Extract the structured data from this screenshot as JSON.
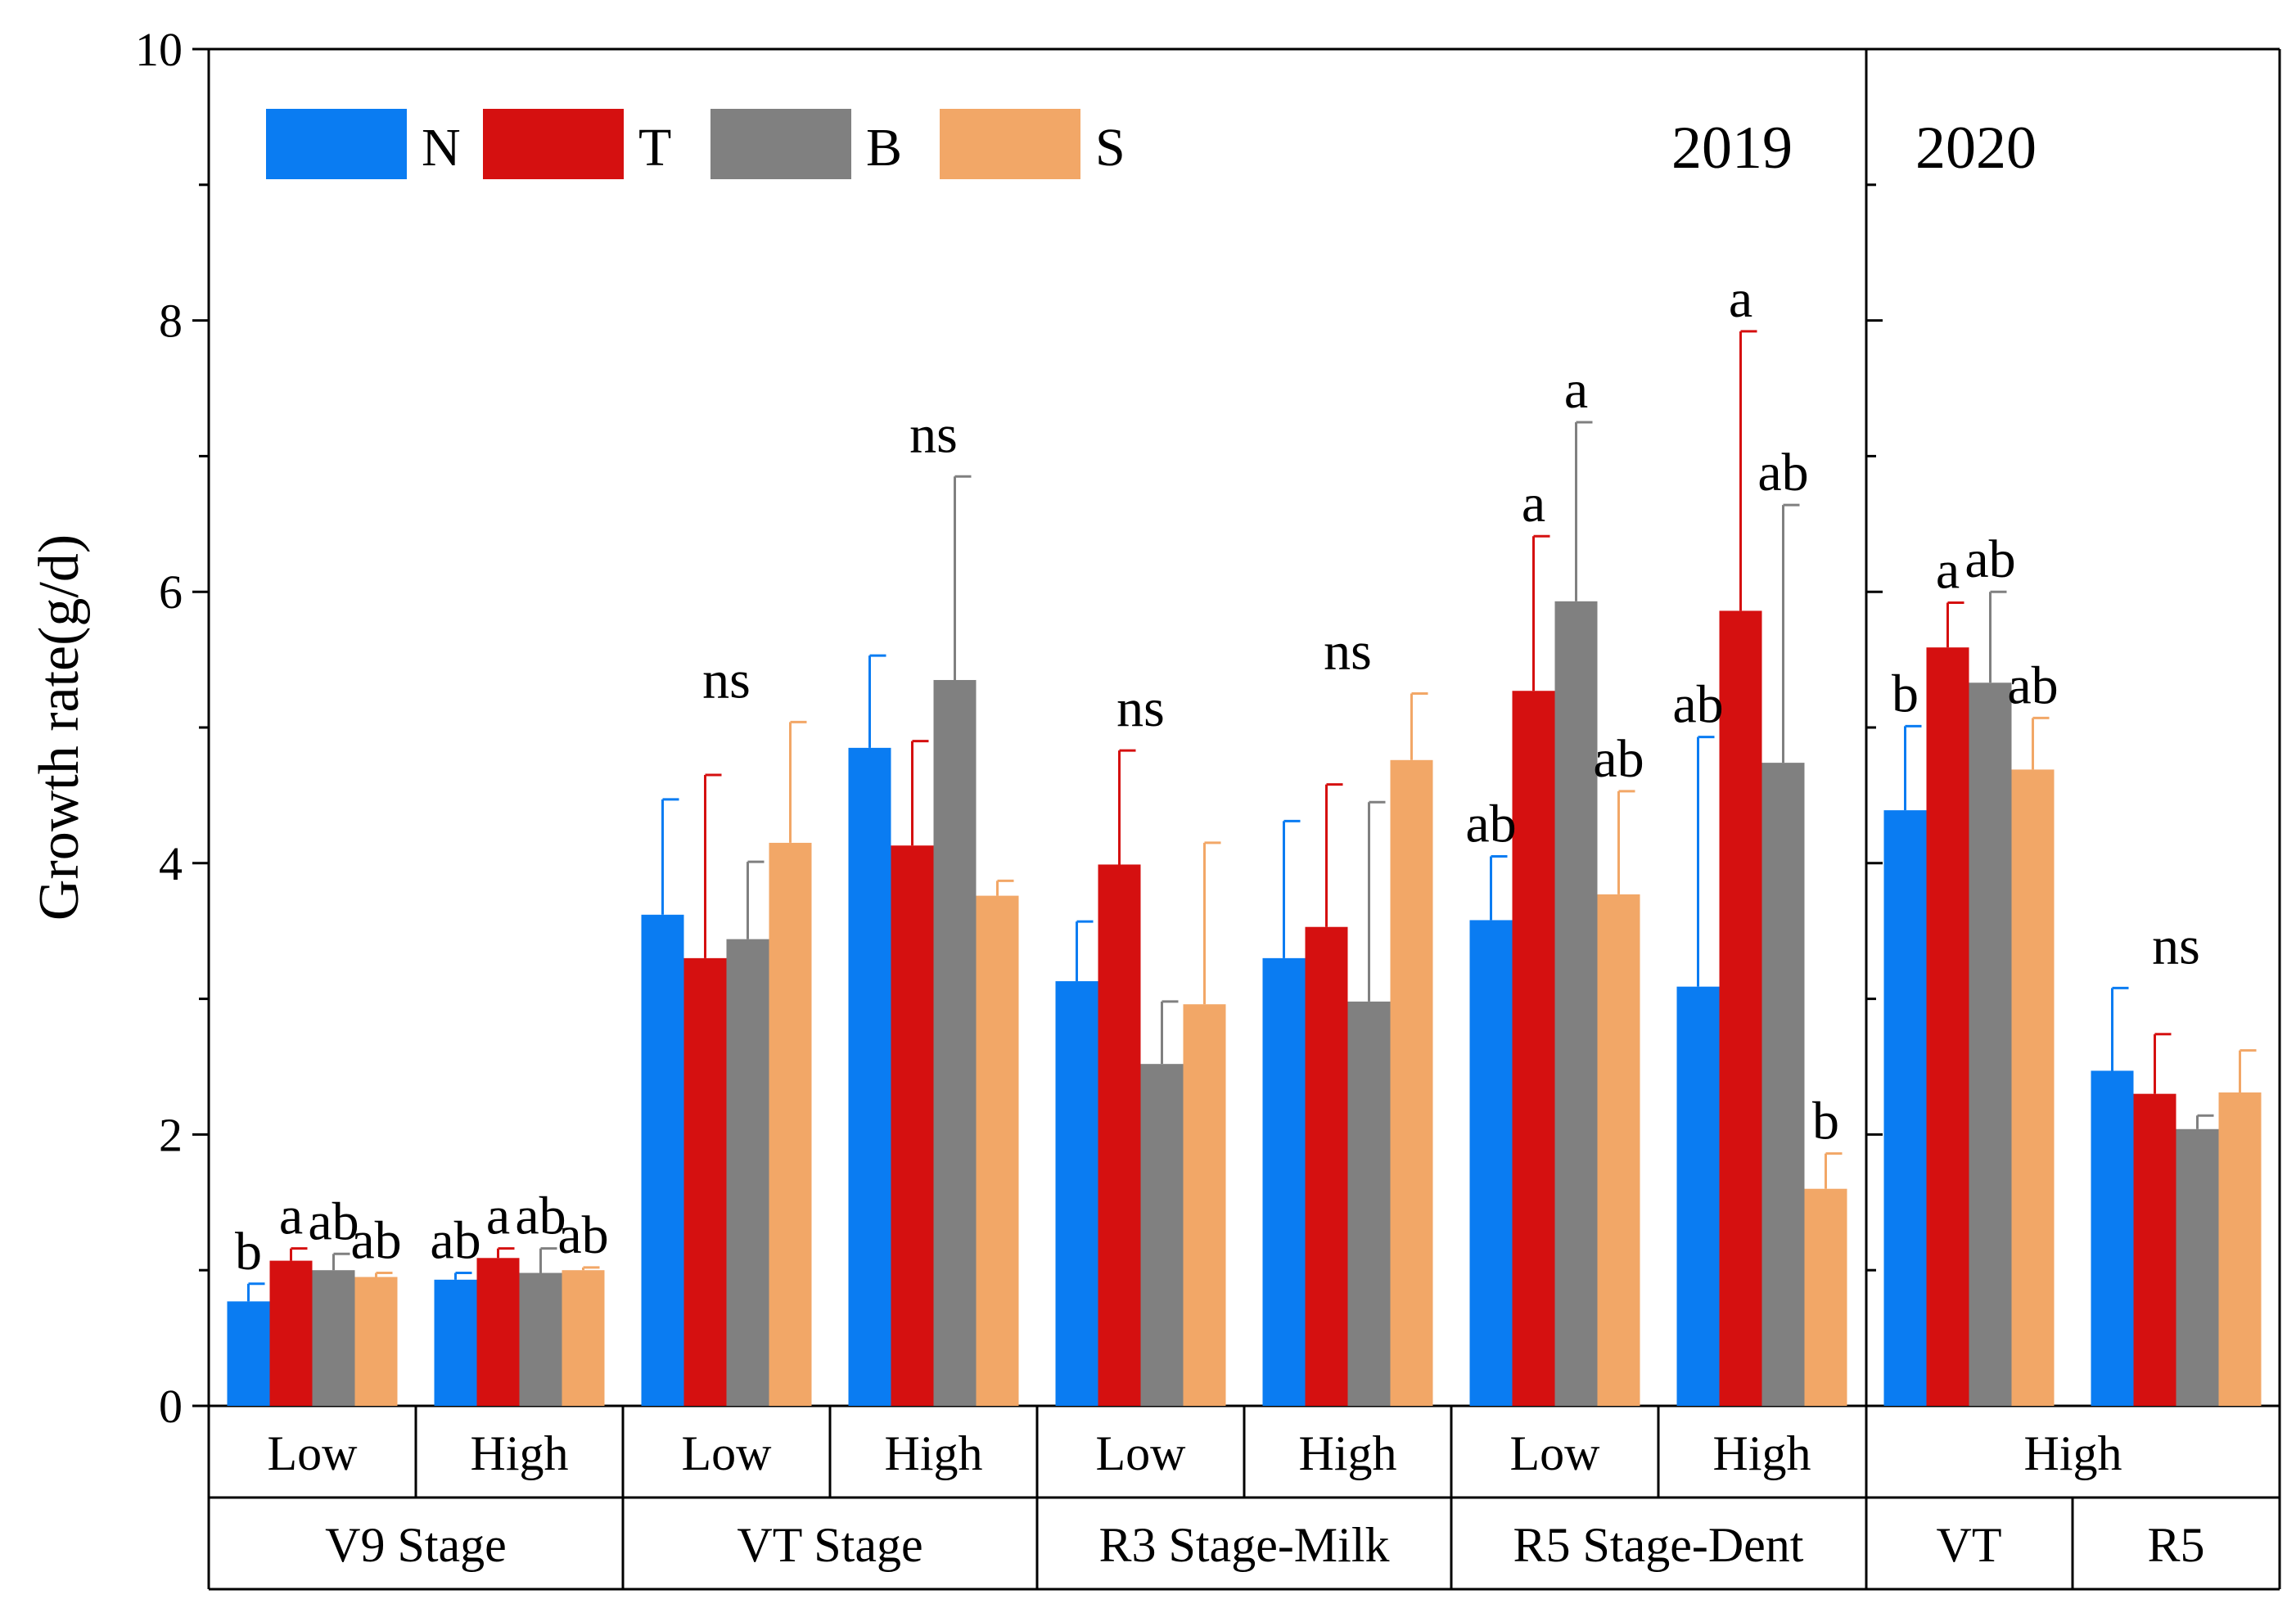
{
  "chart_data": {
    "type": "bar",
    "ylabel": "Growth rate(g/d)",
    "ylim": [
      0,
      10
    ],
    "yticks": [
      0,
      2,
      4,
      6,
      8,
      10
    ],
    "panel_labels": [
      "2019",
      "2020"
    ],
    "legend": {
      "placement": "top-left",
      "entries": [
        {
          "name": "N",
          "color": "#0a7cf2"
        },
        {
          "name": "T",
          "color": "#d51010"
        },
        {
          "name": "B",
          "color": "#808080"
        },
        {
          "name": "S",
          "color": "#f2a767"
        }
      ]
    },
    "stages": [
      {
        "label": "V9 Stage",
        "year": "2019"
      },
      {
        "label": "VT Stage",
        "year": "2019"
      },
      {
        "label": "R3 Stage-Milk",
        "year": "2019"
      },
      {
        "label": "R5 Stage-Dent",
        "year": "2019"
      },
      {
        "label": "VT",
        "year": "2020"
      },
      {
        "label": "R5",
        "year": "2020"
      }
    ],
    "groups": [
      {
        "stage": "V9 Stage",
        "density": "Low",
        "values": [
          0.77,
          1.07,
          1.0,
          0.95
        ],
        "errors": [
          0.13,
          0.09,
          0.12,
          0.03
        ],
        "letters": [
          "b",
          "a",
          "ab",
          "ab"
        ]
      },
      {
        "stage": "V9 Stage",
        "density": "High",
        "values": [
          0.93,
          1.09,
          0.98,
          1.0
        ],
        "errors": [
          0.05,
          0.07,
          0.18,
          0.02
        ],
        "letters": [
          "ab",
          "a",
          "ab",
          "ab"
        ]
      },
      {
        "stage": "VT Stage",
        "density": "Low",
        "values": [
          3.62,
          3.3,
          3.44,
          4.15
        ],
        "errors": [
          0.85,
          1.35,
          0.57,
          0.89
        ],
        "letters": [
          "ns"
        ]
      },
      {
        "stage": "VT Stage",
        "density": "High",
        "values": [
          4.85,
          4.13,
          5.35,
          3.76
        ],
        "errors": [
          0.68,
          0.77,
          1.5,
          0.11
        ],
        "letters": [
          "ns"
        ]
      },
      {
        "stage": "R3 Stage-Milk",
        "density": "Low",
        "values": [
          3.13,
          3.99,
          2.52,
          2.96
        ],
        "errors": [
          0.44,
          0.84,
          0.46,
          1.19
        ],
        "letters": [
          "ns"
        ]
      },
      {
        "stage": "R3 Stage-Milk",
        "density": "High",
        "values": [
          3.3,
          3.53,
          2.98,
          4.76
        ],
        "errors": [
          1.01,
          1.05,
          1.47,
          0.49
        ],
        "letters": [
          "ns"
        ]
      },
      {
        "stage": "R5 Stage-Dent",
        "density": "Low",
        "values": [
          3.58,
          5.27,
          5.93,
          3.77
        ],
        "errors": [
          0.47,
          1.14,
          1.32,
          0.76
        ],
        "letters": [
          "ab",
          "a",
          "a",
          "ab"
        ]
      },
      {
        "stage": "R5 Stage-Dent",
        "density": "High",
        "values": [
          3.09,
          5.86,
          4.74,
          1.6
        ],
        "errors": [
          1.84,
          2.06,
          1.9,
          0.26
        ],
        "letters": [
          "ab",
          "a",
          "ab",
          "b"
        ]
      },
      {
        "stage": "VT",
        "density": "High",
        "values": [
          4.39,
          5.59,
          5.33,
          4.69
        ],
        "errors": [
          0.62,
          0.33,
          0.67,
          0.38
        ],
        "letters": [
          "b",
          "a",
          "ab",
          "ab"
        ]
      },
      {
        "stage": "R5",
        "density": "High",
        "values": [
          2.47,
          2.3,
          2.04,
          2.31
        ],
        "errors": [
          0.61,
          0.44,
          0.1,
          0.31
        ],
        "letters": [
          "ns"
        ]
      }
    ]
  }
}
